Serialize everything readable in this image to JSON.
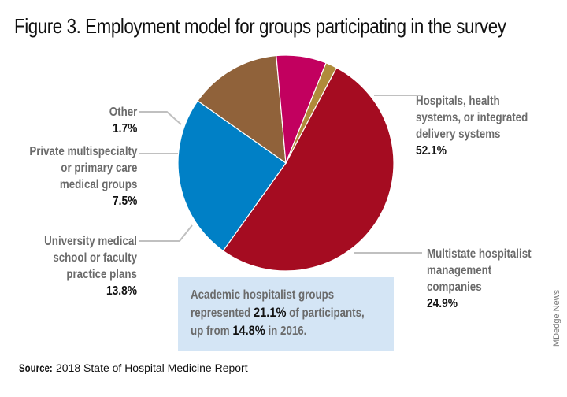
{
  "chart_data": {
    "type": "pie",
    "title": "Figure 3. Employment model for groups participating in the survey",
    "slices": [
      {
        "label": "Hospitals, health systems, or integrated delivery systems",
        "value": 52.1,
        "display": "52.1%",
        "color": "#a50c21",
        "label_lines": [
          "Hospitals, health",
          "systems, or integrated",
          "delivery systems"
        ]
      },
      {
        "label": "Multistate hospitalist management companies",
        "value": 24.9,
        "display": "24.9%",
        "color": "#0080c6",
        "label_lines": [
          "Multistate hospitalist",
          "management",
          "companies"
        ]
      },
      {
        "label": "University medical school or faculty practice plans",
        "value": 13.8,
        "display": "13.8%",
        "color": "#90623a",
        "label_lines": [
          "University medical",
          "school or faculty",
          "practice plans"
        ]
      },
      {
        "label": "Private multispecialty or primary care medical groups",
        "value": 7.5,
        "display": "7.5%",
        "color": "#c2005f",
        "label_lines": [
          "Private multispecialty",
          "or primary care",
          "medical groups"
        ]
      },
      {
        "label": "Other",
        "value": 1.7,
        "display": "1.7%",
        "color": "#b08b3a",
        "label_lines": [
          "Other"
        ]
      }
    ],
    "start_angle_deg": -62,
    "direction": "clockwise"
  },
  "callout": {
    "part1": "Academic hospitalist groups",
    "part2a": "represented ",
    "value1": "21.1%",
    "part2b": " of participants,",
    "part3a": "up from ",
    "value2": "14.8%",
    "part3b": " in 2016."
  },
  "source": {
    "label": "Source:",
    "text": "2018 State of Hospital Medicine Report"
  },
  "credit": "MDedge News",
  "colors": {
    "leader_line": "#c0c0c0",
    "callout_bg": "#d4e5f5"
  }
}
